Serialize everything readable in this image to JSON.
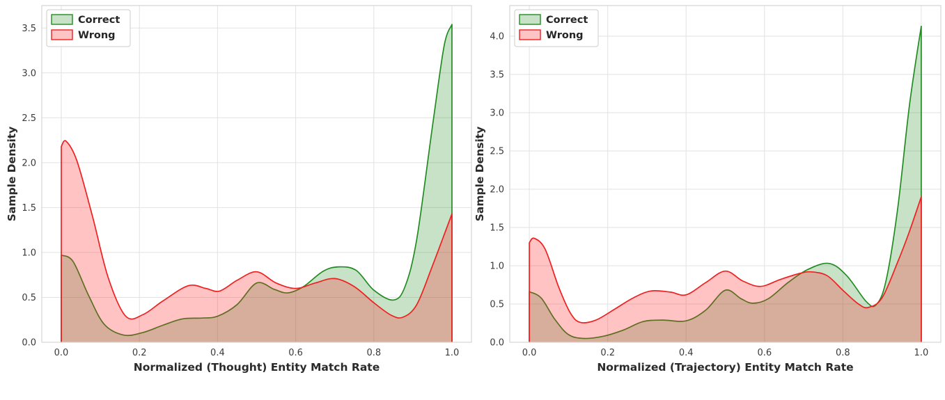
{
  "figure": {
    "background": "#ffffff",
    "grid_color": "#e2e2e2",
    "spine_color": "#d4d4d4",
    "tick_label_color": "#3a3a3a",
    "axis_label_color": "#2b2b2b",
    "legend_text_color": "#262626",
    "legend_border_color": "#cccccc"
  },
  "chart_data": [
    {
      "type": "area",
      "variant": "kde-density",
      "title": "",
      "xlabel": "Normalized (Thought) Entity Match Rate",
      "ylabel": "Sample Density",
      "xlim": [
        -0.05,
        1.05
      ],
      "ylim": [
        0,
        3.75
      ],
      "xticks": [
        0.0,
        0.2,
        0.4,
        0.6,
        0.8,
        1.0
      ],
      "yticks": [
        0.0,
        0.5,
        1.0,
        1.5,
        2.0,
        2.5,
        3.0,
        3.5
      ],
      "grid": true,
      "legend": {
        "position": "upper-left",
        "labels": [
          "Correct",
          "Wrong"
        ]
      },
      "series": [
        {
          "name": "Correct",
          "line_color": "#228b22",
          "fill_color": "rgba(34,139,34,0.25)",
          "x": [
            0,
            0.03,
            0.07,
            0.11,
            0.16,
            0.21,
            0.26,
            0.31,
            0.36,
            0.4,
            0.45,
            0.5,
            0.545,
            0.58,
            0.62,
            0.67,
            0.71,
            0.755,
            0.8,
            0.85,
            0.88,
            0.91,
            0.95,
            0.98,
            1.0
          ],
          "y": [
            0.97,
            0.9,
            0.52,
            0.2,
            0.08,
            0.11,
            0.19,
            0.26,
            0.27,
            0.29,
            0.42,
            0.66,
            0.59,
            0.55,
            0.62,
            0.79,
            0.84,
            0.8,
            0.58,
            0.47,
            0.62,
            1.15,
            2.4,
            3.3,
            3.54
          ]
        },
        {
          "name": "Wrong",
          "line_color": "#ee2020",
          "fill_color": "rgba(255,35,35,0.27)",
          "x": [
            0,
            0.012,
            0.04,
            0.08,
            0.12,
            0.165,
            0.21,
            0.26,
            0.325,
            0.37,
            0.405,
            0.45,
            0.5,
            0.55,
            0.6,
            0.65,
            0.7,
            0.75,
            0.8,
            0.845,
            0.875,
            0.91,
            0.95,
            1.0
          ],
          "y": [
            2.18,
            2.24,
            2.02,
            1.4,
            0.72,
            0.29,
            0.31,
            0.46,
            0.63,
            0.6,
            0.57,
            0.69,
            0.785,
            0.66,
            0.6,
            0.66,
            0.71,
            0.62,
            0.44,
            0.3,
            0.28,
            0.42,
            0.85,
            1.43
          ]
        }
      ]
    },
    {
      "type": "area",
      "variant": "kde-density",
      "title": "",
      "xlabel": "Normalized (Trajectory) Entity Match Rate",
      "ylabel": "Sample Density",
      "xlim": [
        -0.05,
        1.05
      ],
      "ylim": [
        0,
        4.4
      ],
      "xticks": [
        0.0,
        0.2,
        0.4,
        0.6,
        0.8,
        1.0
      ],
      "yticks": [
        0.0,
        0.5,
        1.0,
        1.5,
        2.0,
        2.5,
        3.0,
        3.5,
        4.0
      ],
      "grid": true,
      "legend": {
        "position": "upper-left",
        "labels": [
          "Correct",
          "Wrong"
        ]
      },
      "series": [
        {
          "name": "Correct",
          "line_color": "#228b22",
          "fill_color": "rgba(34,139,34,0.25)",
          "x": [
            0,
            0.03,
            0.065,
            0.1,
            0.14,
            0.19,
            0.24,
            0.29,
            0.34,
            0.4,
            0.45,
            0.5,
            0.54,
            0.57,
            0.61,
            0.66,
            0.71,
            0.765,
            0.81,
            0.86,
            0.885,
            0.91,
            0.94,
            0.97,
            1.0
          ],
          "y": [
            0.66,
            0.58,
            0.3,
            0.1,
            0.05,
            0.08,
            0.16,
            0.27,
            0.29,
            0.28,
            0.42,
            0.68,
            0.57,
            0.51,
            0.57,
            0.78,
            0.95,
            1.03,
            0.87,
            0.53,
            0.49,
            0.8,
            1.75,
            3.1,
            4.13
          ]
        },
        {
          "name": "Wrong",
          "line_color": "#ee2020",
          "fill_color": "rgba(255,35,35,0.27)",
          "x": [
            0,
            0.012,
            0.04,
            0.075,
            0.105,
            0.13,
            0.17,
            0.22,
            0.265,
            0.31,
            0.36,
            0.4,
            0.45,
            0.5,
            0.545,
            0.59,
            0.64,
            0.69,
            0.72,
            0.76,
            0.8,
            0.84,
            0.865,
            0.9,
            0.94,
            0.97,
            1.0
          ],
          "y": [
            1.3,
            1.36,
            1.22,
            0.72,
            0.38,
            0.26,
            0.29,
            0.44,
            0.58,
            0.67,
            0.655,
            0.62,
            0.78,
            0.93,
            0.8,
            0.73,
            0.82,
            0.9,
            0.92,
            0.87,
            0.68,
            0.5,
            0.455,
            0.58,
            1.05,
            1.45,
            1.9
          ]
        }
      ]
    }
  ]
}
